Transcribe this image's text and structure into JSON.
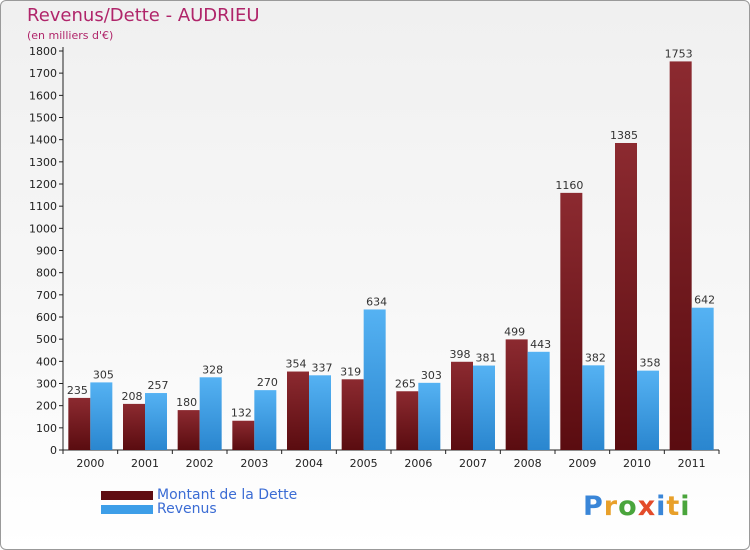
{
  "chart_data": {
    "type": "bar",
    "title": "Revenus/Dette - AUDRIEU",
    "subtitle": "(en milliers d'€)",
    "xlabel": "",
    "ylabel": "",
    "ylim": [
      0,
      1800
    ],
    "yticks": [
      0,
      100,
      200,
      300,
      400,
      500,
      600,
      700,
      800,
      900,
      1000,
      1100,
      1200,
      1300,
      1400,
      1500,
      1600,
      1700,
      1800
    ],
    "grid": false,
    "categories": [
      "2000",
      "2001",
      "2002",
      "2003",
      "2004",
      "2005",
      "2006",
      "2007",
      "2008",
      "2009",
      "2010",
      "2011"
    ],
    "series": [
      {
        "name": "Montant de la Dette",
        "color": "#7a1a1f",
        "values": [
          235,
          208,
          180,
          132,
          354,
          319,
          265,
          398,
          499,
          1160,
          1385,
          1753
        ]
      },
      {
        "name": "Revenus",
        "color": "#3d9ee8",
        "values": [
          305,
          257,
          328,
          270,
          337,
          634,
          303,
          381,
          443,
          382,
          358,
          642
        ]
      }
    ],
    "legend": {
      "position": "bottom-left"
    }
  },
  "logo": {
    "letters": [
      "P",
      "r",
      "o",
      "x",
      "i",
      "t",
      "i"
    ],
    "colors": [
      "#3a86d8",
      "#e8a02a",
      "#4aa53c",
      "#e34b2a",
      "#3a86d8",
      "#e8a02a",
      "#4aa53c"
    ]
  }
}
